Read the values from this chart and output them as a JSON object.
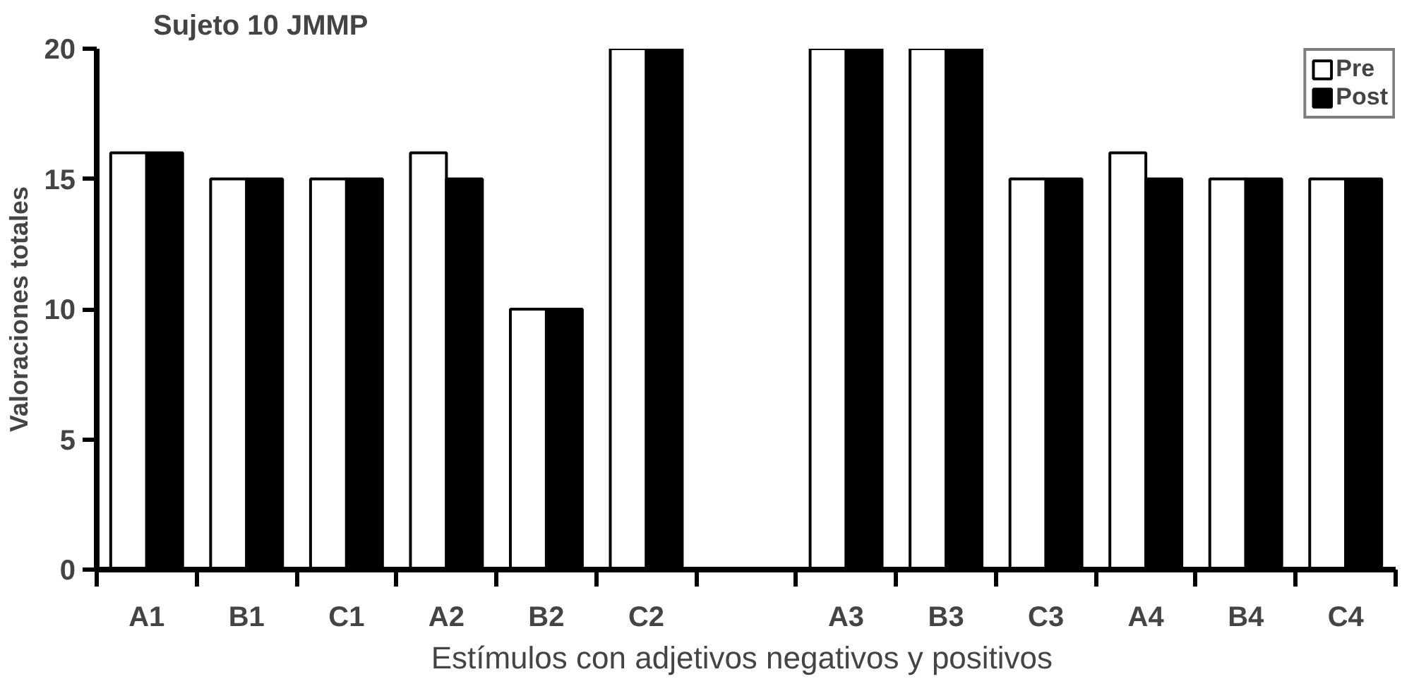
{
  "chart_data": {
    "type": "bar",
    "title": "Sujeto 10   JMMP",
    "xlabel": "Estímulos con adjetivos negativos y  positivos",
    "ylabel": "Valoraciones totales",
    "categories": [
      "A1",
      "B1",
      "C1",
      "A2",
      "B2",
      "C2",
      null,
      "A3",
      "B3",
      "C3",
      "A4",
      "B4",
      "C4"
    ],
    "series": [
      {
        "name": "Pre",
        "color": "#ffffff",
        "values": [
          16,
          15,
          15,
          16,
          10,
          20,
          null,
          20,
          20,
          15,
          16,
          15,
          15
        ]
      },
      {
        "name": "Post",
        "color": "#000000",
        "values": [
          16,
          15,
          15,
          15,
          10,
          20,
          null,
          20,
          20,
          15,
          15,
          15,
          15
        ]
      }
    ],
    "ylim": [
      0,
      20
    ],
    "yticks": [
      0,
      5,
      10,
      15,
      20
    ],
    "grid": false,
    "legend": "top right"
  }
}
